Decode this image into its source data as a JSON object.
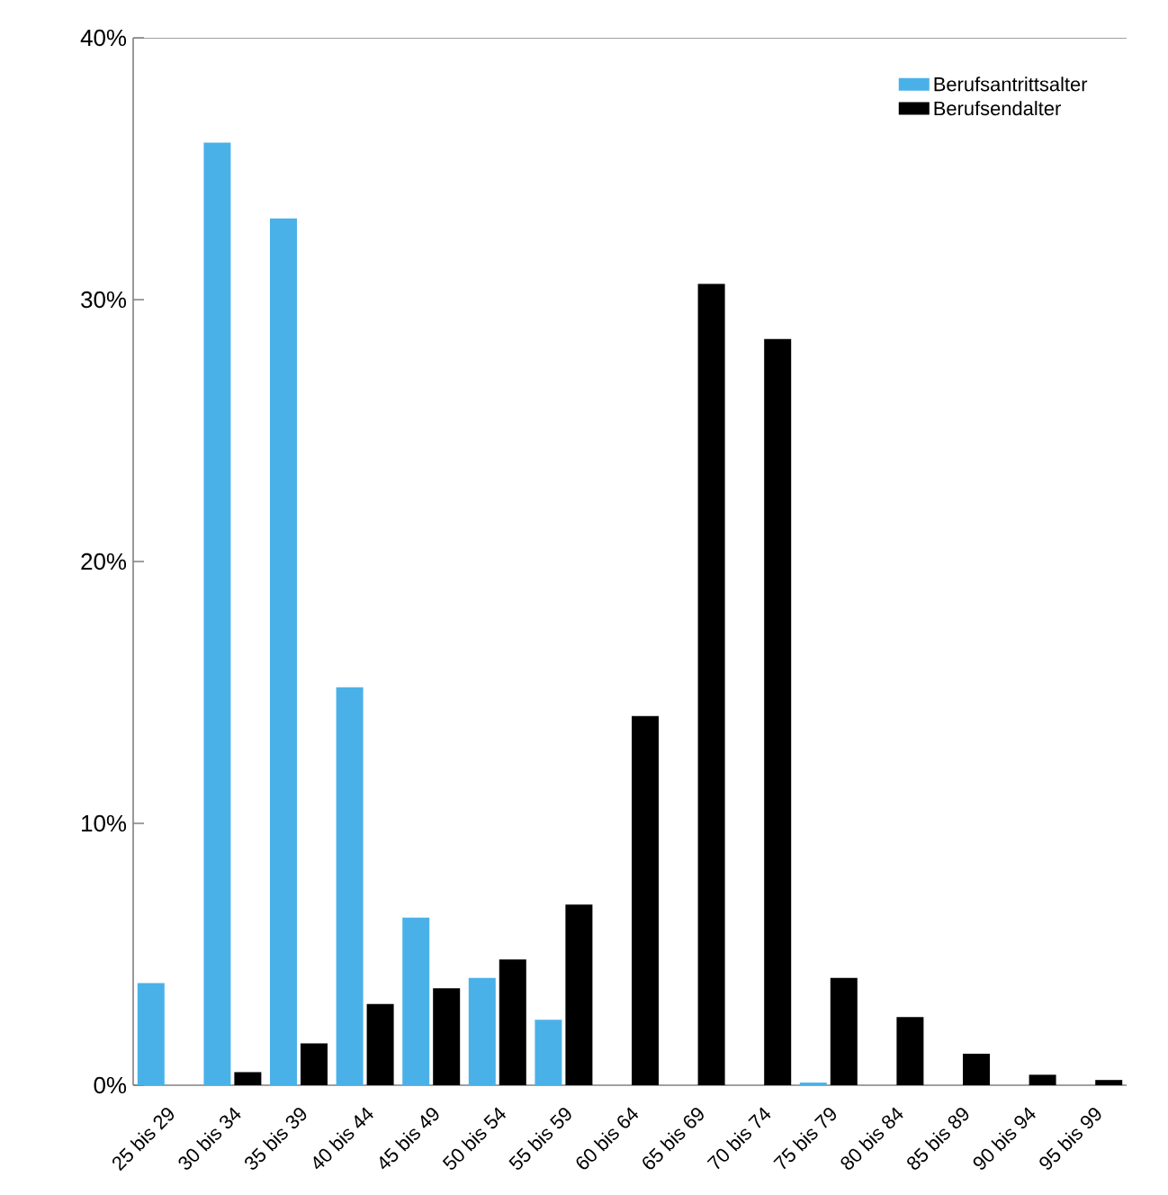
{
  "chart_data": {
    "type": "bar",
    "categories": [
      "25 bis 29",
      "30 bis 34",
      "35 bis 39",
      "40 bis 44",
      "45 bis 49",
      "50 bis 54",
      "55 bis 59",
      "60 bis 64",
      "65 bis 69",
      "70 bis 74",
      "75 bis 79",
      "80 bis 84",
      "85 bis 89",
      "90 bis 94",
      "95 bis 99"
    ],
    "series": [
      {
        "name": "Berufsantrittsalter",
        "color": "#4ab1e8",
        "values": [
          3.9,
          36.0,
          33.1,
          15.2,
          6.4,
          4.1,
          2.5,
          0,
          0,
          0,
          0.1,
          0,
          0,
          0,
          0
        ]
      },
      {
        "name": "Berufsendalter",
        "color": "#000000",
        "values": [
          0,
          0.5,
          1.6,
          3.1,
          3.7,
          4.8,
          6.9,
          14.1,
          30.6,
          28.5,
          4.1,
          2.6,
          1.2,
          0.4,
          0.2
        ]
      }
    ],
    "ylim": [
      0,
      40
    ],
    "yticks": [
      {
        "value": 0,
        "label": "0%"
      },
      {
        "value": 10,
        "label": "10%"
      },
      {
        "value": 20,
        "label": "20%"
      },
      {
        "value": 30,
        "label": "30%"
      },
      {
        "value": 40,
        "label": "40%"
      }
    ],
    "grid": false,
    "legend": "top right"
  }
}
